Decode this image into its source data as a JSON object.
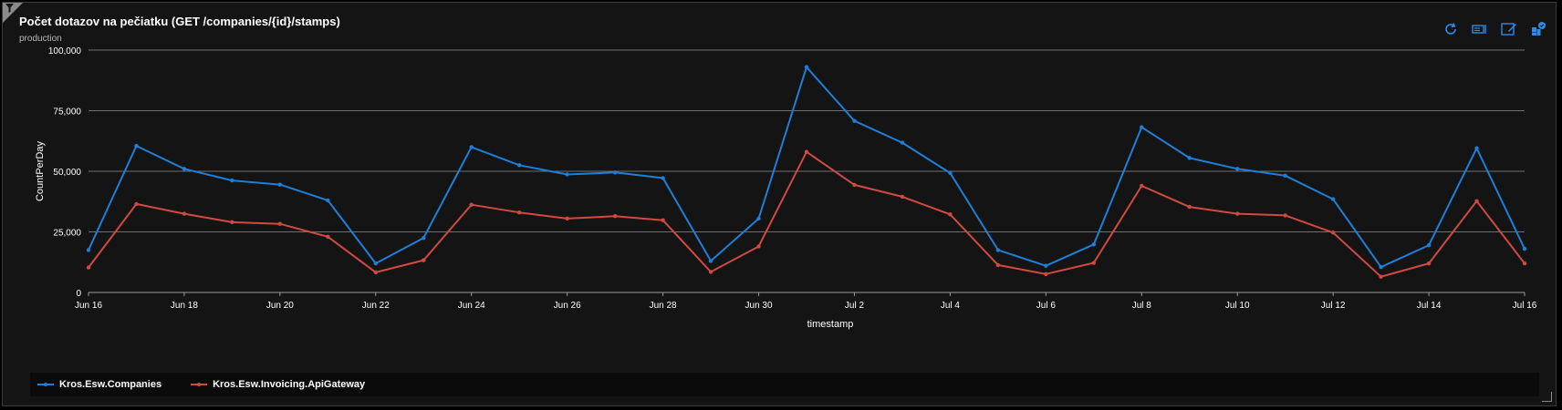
{
  "tile": {
    "title": "Počet dotazov na pečiatku (GET /companies/{id}/stamps)",
    "subtitle": "production"
  },
  "toolbar": {
    "icons": [
      "refresh-icon",
      "query-icon",
      "edit-icon",
      "pin-icon"
    ]
  },
  "colors": {
    "series_a": "#1f7fd8",
    "series_b": "#d14a40",
    "grid": "#8a8a8a",
    "text": "#ffffff",
    "background": "#141414"
  },
  "chart_data": {
    "type": "line",
    "title": "",
    "xlabel": "timestamp",
    "ylabel": "CountPerDay",
    "ylim": [
      0,
      100000
    ],
    "yticks": [
      0,
      25000,
      50000,
      75000,
      100000
    ],
    "ytick_labels": [
      "0",
      "25,000",
      "50,000",
      "75,000",
      "100,000"
    ],
    "grid": true,
    "legend_position": "bottom",
    "x": [
      "Jun 16",
      "Jun 17",
      "Jun 18",
      "Jun 19",
      "Jun 20",
      "Jun 21",
      "Jun 22",
      "Jun 23",
      "Jun 24",
      "Jun 25",
      "Jun 26",
      "Jun 27",
      "Jun 28",
      "Jun 29",
      "Jun 30",
      "Jul 1",
      "Jul 2",
      "Jul 3",
      "Jul 4",
      "Jul 5",
      "Jul 6",
      "Jul 7",
      "Jul 8",
      "Jul 9",
      "Jul 10",
      "Jul 11",
      "Jul 12",
      "Jul 13",
      "Jul 14",
      "Jul 15",
      "Jul 16"
    ],
    "xticks": [
      "Jun 16",
      "Jun 18",
      "Jun 20",
      "Jun 22",
      "Jun 24",
      "Jun 26",
      "Jun 28",
      "Jun 30",
      "Jul 2",
      "Jul 4",
      "Jul 6",
      "Jul 8",
      "Jul 10",
      "Jul 12",
      "Jul 14",
      "Jul 16"
    ],
    "series": [
      {
        "name": "Kros.Esw.Companies",
        "color": "#1f7fd8",
        "values": [
          17500,
          60500,
          51000,
          46200,
          44500,
          38000,
          12000,
          22500,
          60000,
          52500,
          48700,
          49500,
          47200,
          13000,
          30500,
          93000,
          70800,
          61800,
          49300,
          17500,
          11000,
          19800,
          68200,
          55500,
          51000,
          48200,
          38500,
          10500,
          19500,
          59500,
          18000
        ]
      },
      {
        "name": "Kros.Esw.Invoicing.ApiGateway",
        "color": "#d14a40",
        "values": [
          10300,
          36500,
          32500,
          29000,
          28300,
          23000,
          8300,
          13300,
          36200,
          33000,
          30500,
          31500,
          29800,
          8500,
          19000,
          58000,
          44400,
          39500,
          32200,
          11300,
          7600,
          12200,
          44000,
          35300,
          32500,
          31800,
          24700,
          6500,
          12000,
          37700,
          12000
        ]
      }
    ]
  }
}
